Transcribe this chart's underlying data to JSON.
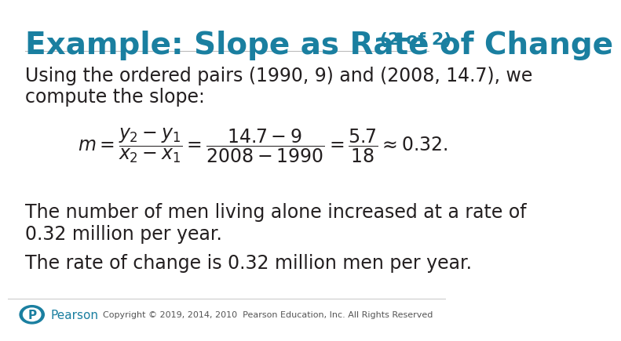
{
  "title_main": "Example: Slope as Rate of Change",
  "title_suffix": " (2 of 2)",
  "title_color": "#1a7fa0",
  "title_fontsize": 28,
  "title_suffix_fontsize": 16,
  "bg_color": "#ffffff",
  "body_text_color": "#231f20",
  "body_fontsize": 17,
  "line1": "Using the ordered pairs (1990, 9) and (2008, 14.7), we",
  "line2": "compute the slope:",
  "para1_line1": "The number of men living alone increased at a rate of",
  "para1_line2": "0.32 million per year.",
  "para2": "The rate of change is 0.32 million men per year.",
  "copyright": "Copyright © 2019, 2014, 2010  Pearson Education, Inc. All Rights Reserved",
  "pearson_color": "#1a7fa0",
  "footer_fontsize": 8
}
